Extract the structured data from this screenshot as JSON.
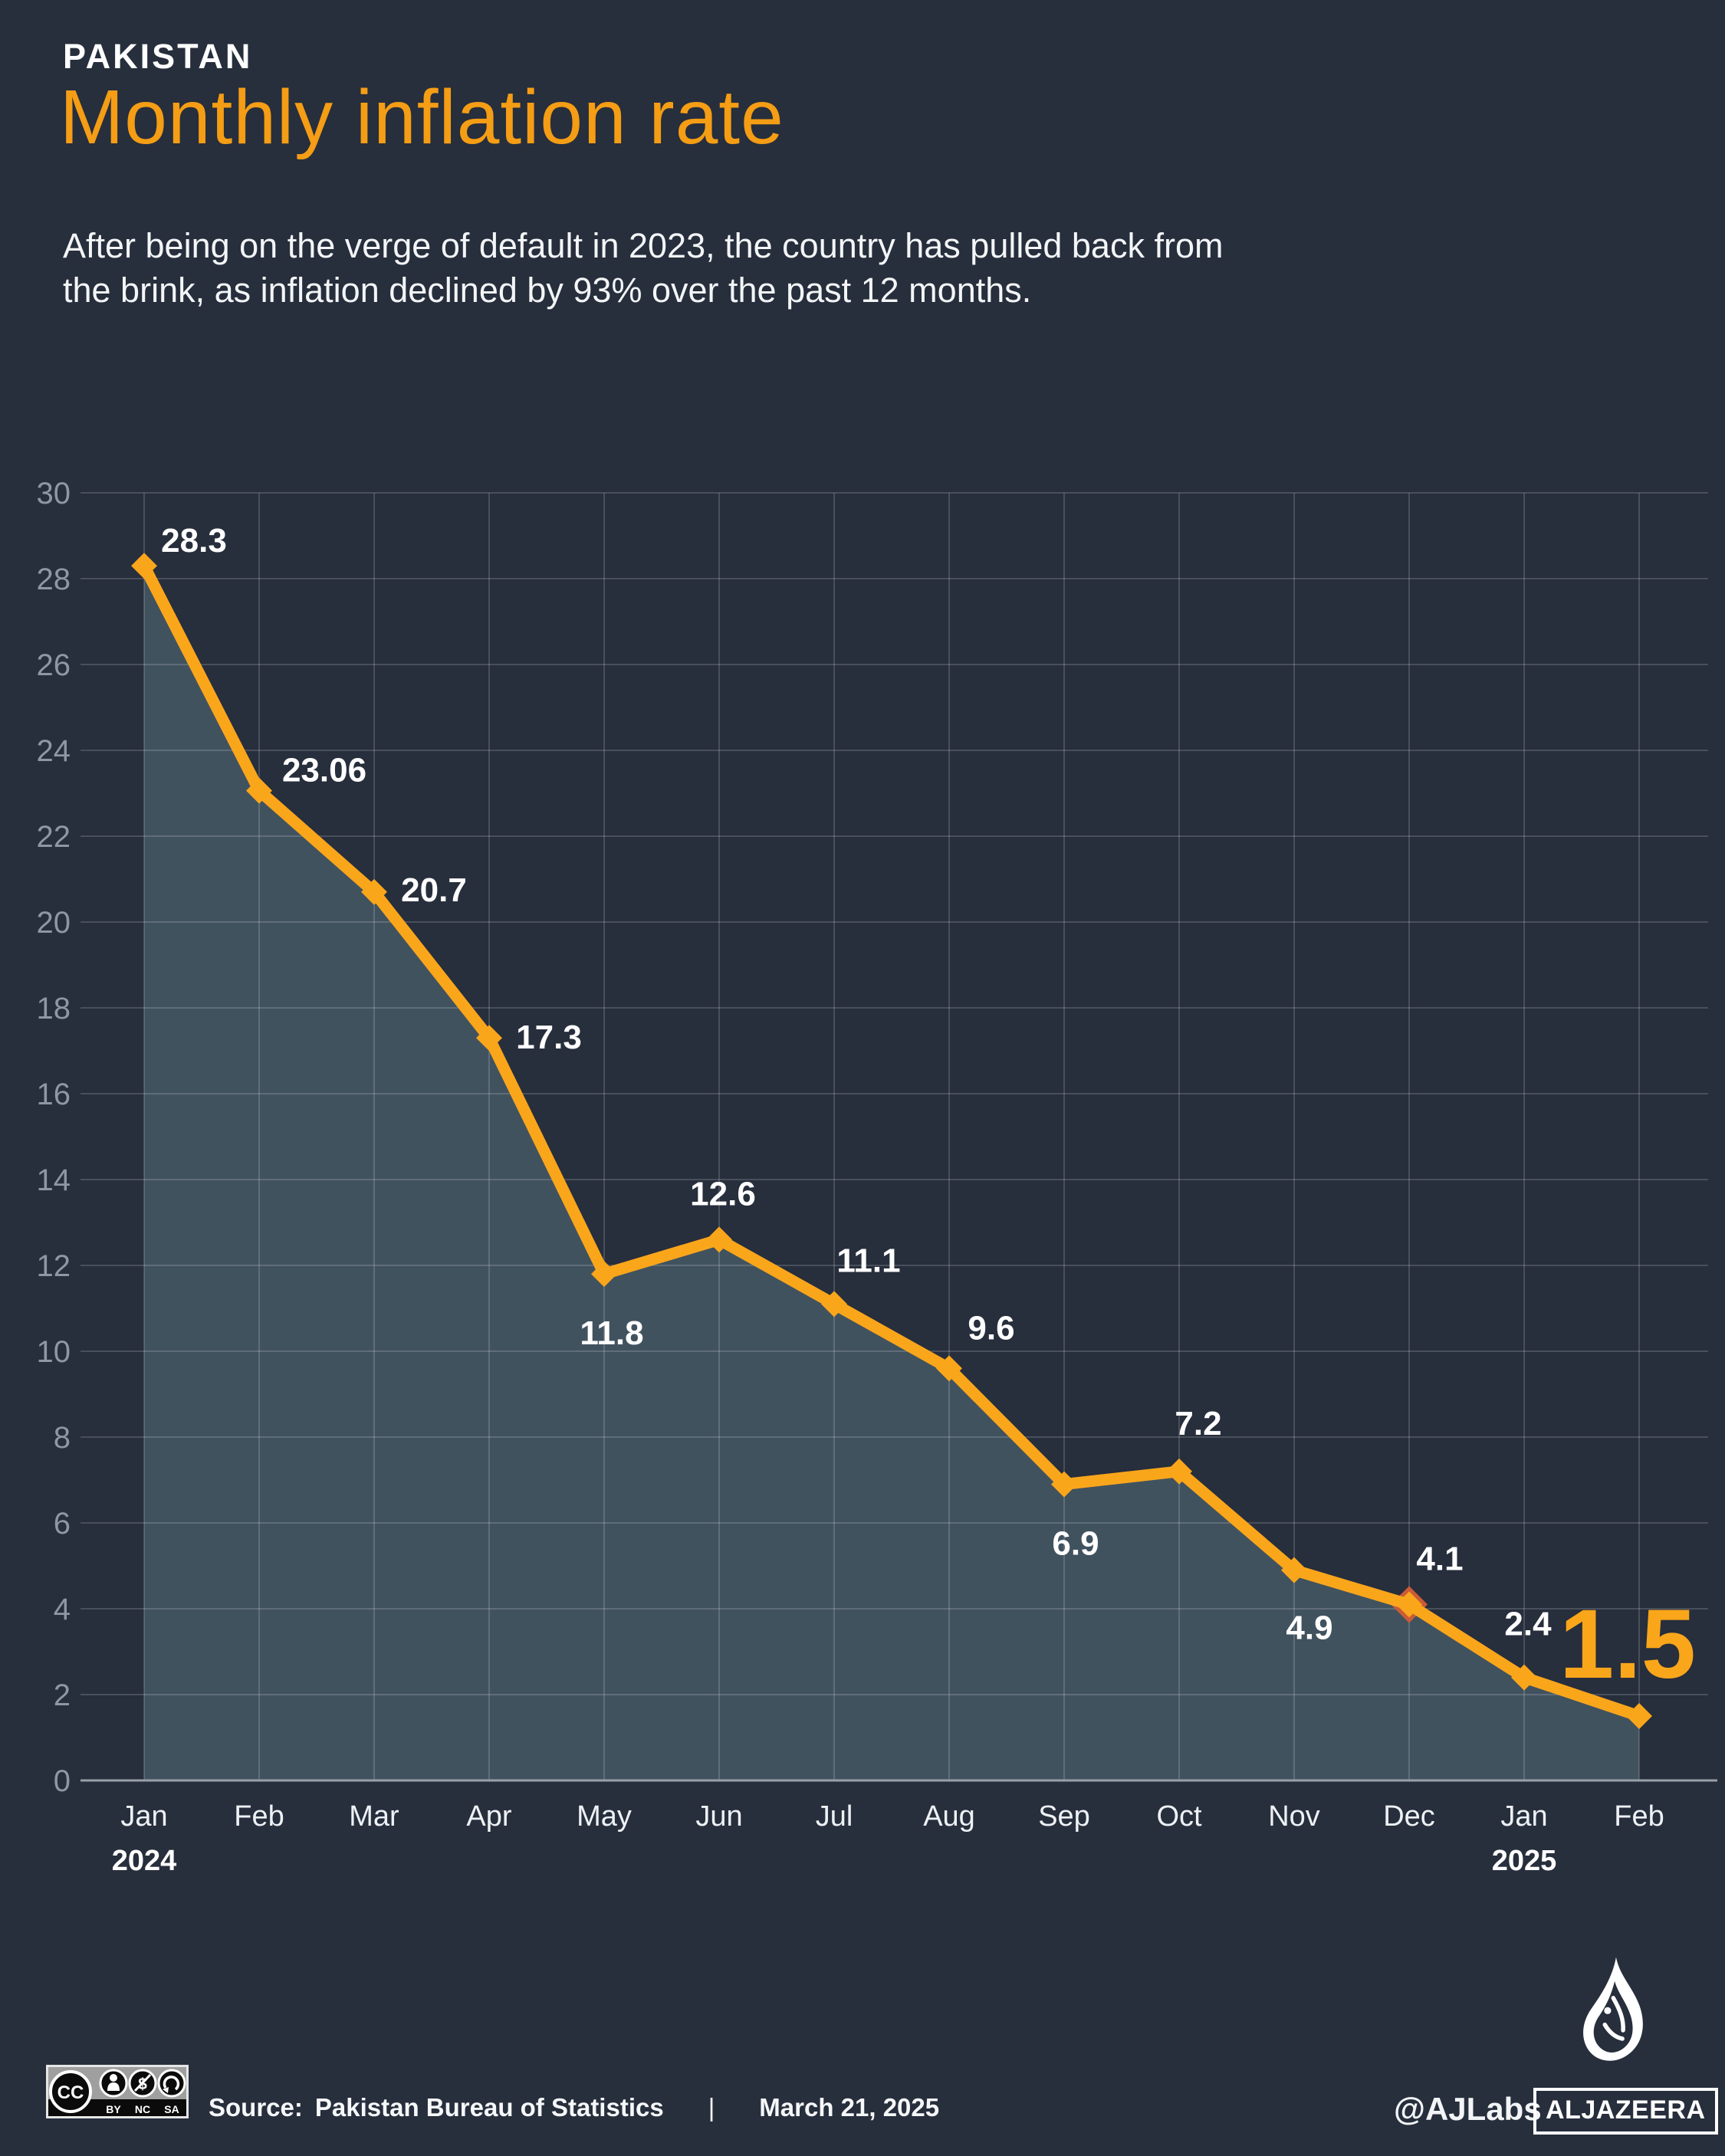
{
  "header": {
    "kicker": "PAKISTAN",
    "title": "Monthly inflation rate",
    "subtitle": [
      "After being on the verge of default in 2023, the country has pulled back from",
      "the brink, as inflation declined by 93%  over the past 12 months."
    ]
  },
  "chart_data": {
    "type": "area",
    "title": "Monthly inflation rate",
    "categories": [
      "Jan",
      "Feb",
      "Mar",
      "Apr",
      "May",
      "Jun",
      "Jul",
      "Aug",
      "Sep",
      "Oct",
      "Nov",
      "Dec",
      "Jan",
      "Feb"
    ],
    "year_markers": [
      {
        "index": 0,
        "label": "2024"
      },
      {
        "index": 12,
        "label": "2025"
      }
    ],
    "values": [
      28.3,
      23.06,
      20.7,
      17.3,
      11.8,
      12.6,
      11.1,
      9.6,
      6.9,
      7.2,
      4.9,
      4.1,
      2.4,
      1.5
    ],
    "value_labels": [
      "28.3",
      "23.06",
      "20.7",
      "17.3",
      "11.8",
      "12.6",
      "11.1",
      "9.6",
      "6.9",
      "7.2",
      "4.9",
      "4.1",
      "2.4",
      "1.5"
    ],
    "label_dx": [
      65,
      85,
      78,
      78,
      10,
      5,
      45,
      55,
      15,
      25,
      20,
      40,
      5,
      -15
    ],
    "label_dy": [
      -18,
      -12,
      12,
      14,
      92,
      -45,
      -42,
      -38,
      92,
      -48,
      90,
      -45,
      -55,
      -50
    ],
    "highlight_index": 11,
    "emphasis_index": 13,
    "ylim": [
      0,
      30
    ],
    "ytick_step": 2,
    "grid": true,
    "legend": "none",
    "xlabel": "",
    "ylabel": "",
    "colors": {
      "background": "#272e3c",
      "line": "#FAA61B",
      "area_fill": "#41525F",
      "value_label": "#FFFFFF",
      "emphasis_label": "#FAA61B",
      "highlight_marker": "#C95B38",
      "gridline": "rgba(255,255,255,0.16)",
      "zero_axis": "#98A0AA",
      "ytick_label": "#8E97A3",
      "xtick_label": "#EEF1F5",
      "year_label": "#FFFFFF"
    }
  },
  "footer": {
    "license": {
      "cc": "CC",
      "terms": [
        "BY",
        "NC",
        "SA"
      ]
    },
    "source_label": "Source:",
    "source": "Pakistan Bureau of Statistics",
    "separator": "|",
    "date": "March 21, 2025",
    "credit": "@AJLabs",
    "brand": "ALJAZEERA"
  }
}
